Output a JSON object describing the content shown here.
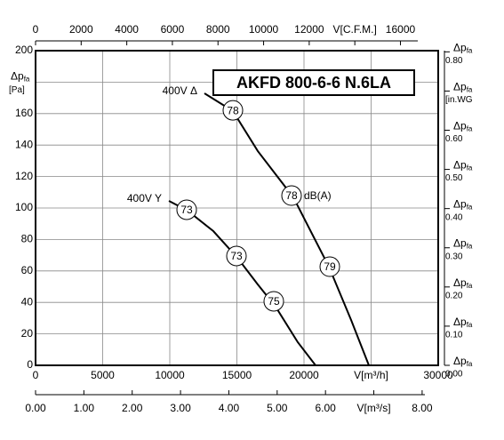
{
  "chart_data": {
    "type": "line",
    "title": "AKFD 800-6-6 N.6LA",
    "ylabel": "Δp",
    "ylabel_sub": "fa",
    "y2label": "Δp",
    "y2label_sub": "fa",
    "unit_label": "dB(A)",
    "xlim": [
      0,
      30000
    ],
    "xticks": [
      0,
      5000,
      10000,
      15000,
      20000,
      {
        "value": 25000,
        "label": "V[m³/h]"
      },
      30000
    ],
    "ylim": [
      0,
      200
    ],
    "yticks": [
      0,
      20,
      40,
      60,
      80,
      100,
      120,
      140,
      160,
      {
        "value": 180,
        "label": "[Pa]"
      },
      200
    ],
    "x2lim": [
      0,
      17657
    ],
    "x2ticks": [
      0,
      2000,
      4000,
      6000,
      8000,
      10000,
      12000,
      {
        "value": 14000,
        "label": "V[C.F.M.]"
      },
      16000
    ],
    "x3lim": [
      0,
      8.333
    ],
    "x3ticks": [
      {
        "value": 0,
        "label": "0.00"
      },
      {
        "value": 1,
        "label": "1.00"
      },
      {
        "value": 2,
        "label": "2.00"
      },
      {
        "value": 3,
        "label": "3.00"
      },
      {
        "value": 4,
        "label": "4.00"
      },
      {
        "value": 5,
        "label": "5.00"
      },
      {
        "value": 6,
        "label": "6.00"
      },
      {
        "value": 7,
        "label": "V[m³/s]"
      },
      {
        "value": 8,
        "label": "8.00"
      }
    ],
    "y2lim": [
      0,
      0.803
    ],
    "y2ticks": [
      {
        "value": 0,
        "label": "0.00"
      },
      {
        "value": 0.1,
        "label": "0.10"
      },
      {
        "value": 0.2,
        "label": "0.20"
      },
      {
        "value": 0.3,
        "label": "0.30"
      },
      {
        "value": 0.4,
        "label": "0.40"
      },
      {
        "value": 0.5,
        "label": "0.50"
      },
      {
        "value": 0.6,
        "label": "0.60"
      },
      {
        "value": 0.7,
        "label": "[in.WG"
      },
      {
        "value": 0.8,
        "label": "0.80"
      }
    ],
    "grid": true,
    "series": [
      {
        "name": "400V Δ",
        "color": "#000000",
        "x": [
          12583,
          14702,
          16556,
          19205,
          21854,
          23510,
          24834
        ],
        "values": [
          172.9,
          161.6,
          136.2,
          106.8,
          62.7,
          28.8,
          0
        ],
        "markers": [
          {
            "x": 14702,
            "y": 162.1,
            "label": "78"
          },
          {
            "x": 19073,
            "y": 107.9,
            "label": "78"
          },
          {
            "x": 21921,
            "y": 62.7,
            "label": "79"
          }
        ]
      },
      {
        "name": "400V Y",
        "color": "#000000",
        "x": [
          9934,
          11325,
          13245,
          15033,
          16556,
          17881,
          19536,
          20861
        ],
        "values": [
          104.5,
          98.3,
          85.3,
          68.4,
          51.4,
          37.3,
          14.7,
          0
        ],
        "markers": [
          {
            "x": 11258,
            "y": 98.9,
            "label": "73"
          },
          {
            "x": 14967,
            "y": 69.5,
            "label": "73"
          },
          {
            "x": 17748,
            "y": 40.7,
            "label": "75"
          }
        ]
      }
    ]
  }
}
